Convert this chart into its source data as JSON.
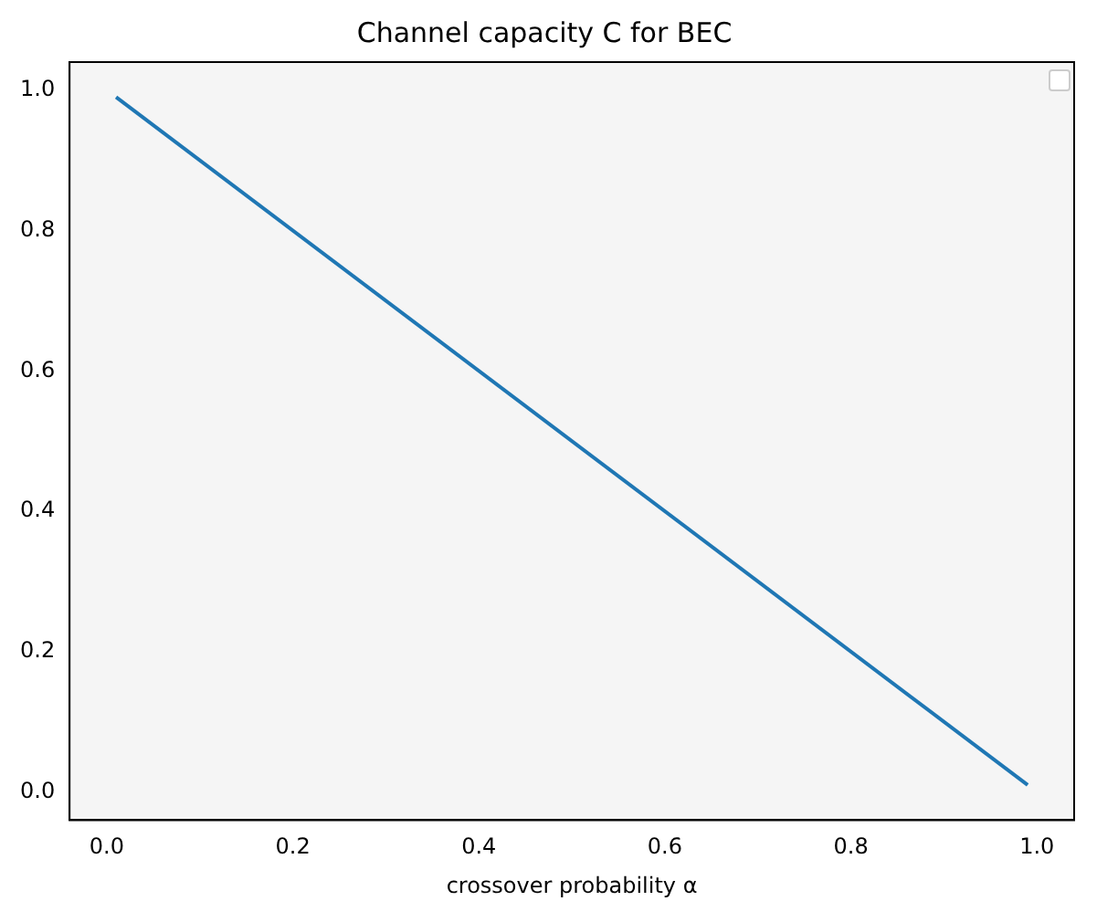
{
  "chart_data": {
    "type": "line",
    "title": "Channel capacity C for BEC",
    "xlabel": "crossover probability α",
    "series": [
      {
        "color": "#1f77b4",
        "x": [
          0.01,
          0.99
        ],
        "values": [
          0.99,
          0.01
        ]
      }
    ],
    "xlim": [
      -0.04,
      1.04
    ],
    "ylim": [
      -0.04,
      1.04
    ],
    "xticks": [
      {
        "value": 0,
        "label": "0.0"
      },
      0.2,
      0.4,
      0.6,
      0.8,
      {
        "value": 1,
        "label": "1.0"
      }
    ],
    "yticks": [
      {
        "value": 0,
        "label": "0.0"
      },
      0.2,
      0.4,
      0.6,
      0.8,
      {
        "value": 1,
        "label": "1.0"
      }
    ],
    "grid": false
  }
}
